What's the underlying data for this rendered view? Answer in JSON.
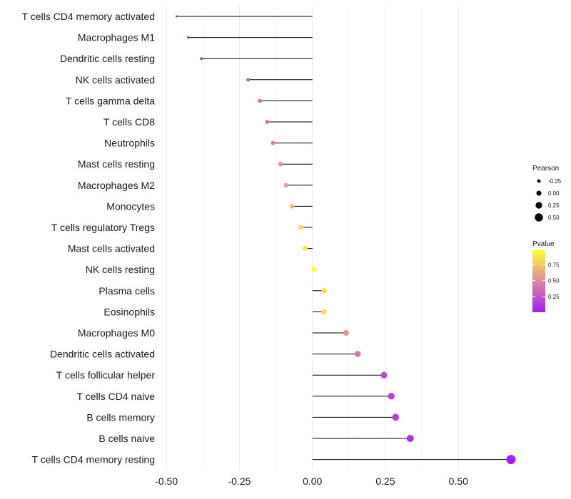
{
  "chart_data": {
    "type": "lollipop",
    "title": "",
    "xlabel": "",
    "ylabel": "",
    "xlim": [
      -0.52,
      0.69
    ],
    "xticks": [
      -0.5,
      -0.25,
      0.0,
      0.25,
      0.5
    ],
    "xtick_labels": [
      "-0.50",
      "-0.25",
      "0.00",
      "0.25",
      "0.50"
    ],
    "baseline": 0.0,
    "points": [
      {
        "label": "T cells CD4 memory activated",
        "pearson": -0.465,
        "pvalue": 0.01
      },
      {
        "label": "Macrophages M1",
        "pearson": -0.425,
        "pvalue": 0.03
      },
      {
        "label": "Dendritic cells resting",
        "pearson": -0.38,
        "pvalue": 0.06
      },
      {
        "label": "NK cells activated",
        "pearson": -0.22,
        "pvalue": 0.28
      },
      {
        "label": "T cells gamma delta",
        "pearson": -0.18,
        "pvalue": 0.36
      },
      {
        "label": "T cells CD8",
        "pearson": -0.155,
        "pvalue": 0.4
      },
      {
        "label": "Neutrophils",
        "pearson": -0.135,
        "pvalue": 0.45
      },
      {
        "label": "Mast cells resting",
        "pearson": -0.11,
        "pvalue": 0.52
      },
      {
        "label": "Macrophages M2",
        "pearson": -0.09,
        "pvalue": 0.6
      },
      {
        "label": "Monocytes",
        "pearson": -0.07,
        "pvalue": 0.68
      },
      {
        "label": "T cells regulatory  Tregs ",
        "pearson": -0.04,
        "pvalue": 0.84
      },
      {
        "label": "Mast cells activated",
        "pearson": -0.025,
        "pvalue": 0.88
      },
      {
        "label": "NK cells resting",
        "pearson": 0.005,
        "pvalue": 0.98
      },
      {
        "label": "Plasma cells",
        "pearson": 0.04,
        "pvalue": 0.85
      },
      {
        "label": "Eosinophils",
        "pearson": 0.04,
        "pvalue": 0.85
      },
      {
        "label": "Macrophages M0",
        "pearson": 0.115,
        "pvalue": 0.55
      },
      {
        "label": "Dendritic cells activated",
        "pearson": 0.155,
        "pvalue": 0.42
      },
      {
        "label": "T cells follicular helper",
        "pearson": 0.245,
        "pvalue": 0.2
      },
      {
        "label": "T cells CD4 naive",
        "pearson": 0.27,
        "pvalue": 0.17
      },
      {
        "label": "B cells memory",
        "pearson": 0.285,
        "pvalue": 0.15
      },
      {
        "label": "B cells naive",
        "pearson": 0.335,
        "pvalue": 0.09
      },
      {
        "label": "T cells CD4 memory resting",
        "pearson": 0.68,
        "pvalue": 0.01
      }
    ],
    "legend_size": {
      "title": "Pearson",
      "values": [
        -0.25,
        0.0,
        0.25,
        0.5
      ],
      "labels": [
        "-0.25",
        "0.00",
        "0.25",
        "0.50"
      ]
    },
    "legend_color": {
      "title": "Pvalue",
      "range": [
        0.0,
        0.98
      ],
      "ticks": [
        0.25,
        0.5,
        0.75
      ],
      "tick_labels": [
        "0.25",
        "0.50",
        "0.75"
      ],
      "low_color": "#A020F0",
      "mid_color": "#DD88A0",
      "high_color": "#FFFF33"
    }
  },
  "colors": {
    "grid": "#ebebeb",
    "segment": "#000000",
    "text": "#1a1a1a"
  }
}
